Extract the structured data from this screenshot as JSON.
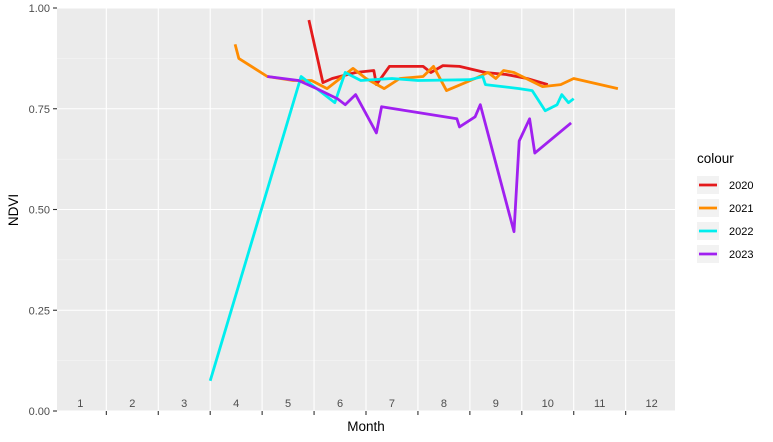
{
  "chart_data": {
    "type": "line",
    "xlabel": "Month",
    "ylabel": "NDVI",
    "xlim": [
      0.55,
      12.45
    ],
    "ylim": [
      0.0,
      1.0
    ],
    "x_ticks": [
      1,
      2,
      3,
      4,
      5,
      6,
      7,
      8,
      9,
      10,
      11,
      12
    ],
    "x_tick_labels": [
      "1",
      "2",
      "3",
      "4",
      "5",
      "6",
      "7",
      "8",
      "9",
      "10",
      "11",
      "12"
    ],
    "y_ticks": [
      0.0,
      0.25,
      0.5,
      0.75,
      1.0
    ],
    "y_tick_labels": [
      "0.00",
      "0.25",
      "0.50",
      "0.75",
      "1.00"
    ],
    "grid": true,
    "legend_title": "colour",
    "legend_position": "right",
    "series": [
      {
        "name": "2020",
        "color": "#e41a1c",
        "points": [
          [
            5.4,
            0.97
          ],
          [
            5.67,
            0.815
          ],
          [
            5.85,
            0.825
          ],
          [
            6.3,
            0.84
          ],
          [
            6.65,
            0.845
          ],
          [
            6.7,
            0.81
          ],
          [
            6.95,
            0.855
          ],
          [
            7.6,
            0.855
          ],
          [
            7.75,
            0.84
          ],
          [
            7.98,
            0.857
          ],
          [
            8.3,
            0.855
          ],
          [
            8.8,
            0.84
          ],
          [
            9.2,
            0.835
          ],
          [
            9.6,
            0.825
          ],
          [
            10.0,
            0.81
          ]
        ]
      },
      {
        "name": "2021",
        "color": "#ff8c00",
        "points": [
          [
            3.98,
            0.91
          ],
          [
            4.05,
            0.875
          ],
          [
            4.6,
            0.83
          ],
          [
            5.1,
            0.82
          ],
          [
            5.45,
            0.82
          ],
          [
            5.75,
            0.8
          ],
          [
            6.25,
            0.85
          ],
          [
            6.5,
            0.825
          ],
          [
            6.85,
            0.8
          ],
          [
            7.15,
            0.825
          ],
          [
            7.6,
            0.83
          ],
          [
            7.8,
            0.855
          ],
          [
            8.05,
            0.795
          ],
          [
            8.6,
            0.825
          ],
          [
            8.85,
            0.84
          ],
          [
            9.0,
            0.825
          ],
          [
            9.15,
            0.845
          ],
          [
            9.35,
            0.84
          ],
          [
            9.9,
            0.805
          ],
          [
            10.25,
            0.81
          ],
          [
            10.5,
            0.825
          ],
          [
            11.35,
            0.8
          ]
        ]
      },
      {
        "name": "2022",
        "color": "#00eeee",
        "points": [
          [
            3.5,
            0.075
          ],
          [
            5.25,
            0.83
          ],
          [
            5.9,
            0.765
          ],
          [
            6.1,
            0.84
          ],
          [
            6.4,
            0.82
          ],
          [
            7.0,
            0.825
          ],
          [
            7.5,
            0.82
          ],
          [
            8.5,
            0.822
          ],
          [
            8.75,
            0.83
          ],
          [
            8.8,
            0.81
          ],
          [
            9.45,
            0.8
          ],
          [
            9.7,
            0.795
          ],
          [
            9.95,
            0.745
          ],
          [
            10.18,
            0.76
          ],
          [
            10.27,
            0.785
          ],
          [
            10.4,
            0.765
          ],
          [
            10.5,
            0.775
          ]
        ]
      },
      {
        "name": "2023",
        "color": "#a020f0",
        "points": [
          [
            4.6,
            0.83
          ],
          [
            5.2,
            0.82
          ],
          [
            5.55,
            0.8
          ],
          [
            5.95,
            0.775
          ],
          [
            6.1,
            0.76
          ],
          [
            6.3,
            0.785
          ],
          [
            6.7,
            0.69
          ],
          [
            6.8,
            0.755
          ],
          [
            8.25,
            0.725
          ],
          [
            8.3,
            0.705
          ],
          [
            8.6,
            0.73
          ],
          [
            8.65,
            0.745
          ],
          [
            8.7,
            0.76
          ],
          [
            9.35,
            0.445
          ],
          [
            9.45,
            0.67
          ],
          [
            9.65,
            0.725
          ],
          [
            9.75,
            0.64
          ],
          [
            10.45,
            0.715
          ]
        ]
      }
    ]
  }
}
